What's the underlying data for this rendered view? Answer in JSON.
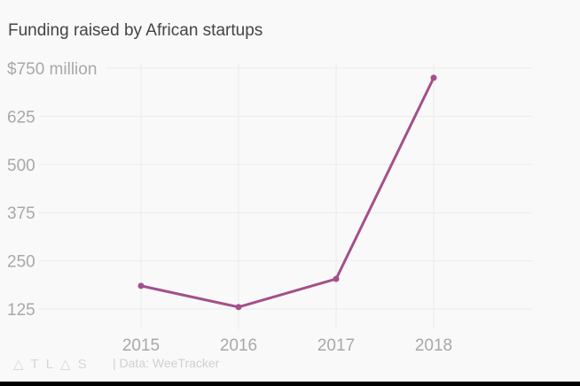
{
  "chart_data": {
    "type": "line",
    "title": "Funding raised by African startups",
    "categories": [
      "2015",
      "2016",
      "2017",
      "2018"
    ],
    "values": [
      185,
      130,
      203,
      725
    ],
    "ylim": [
      75,
      775
    ],
    "yticks": [
      125,
      250,
      375,
      500,
      625,
      750
    ],
    "ytick_labels": [
      "125",
      "250",
      "375",
      "500",
      "625",
      "$750 million"
    ],
    "grid": true,
    "line_color": "#a3508a"
  },
  "footer": {
    "logo": "ATLAS",
    "source": "| Data: WeeTracker"
  }
}
